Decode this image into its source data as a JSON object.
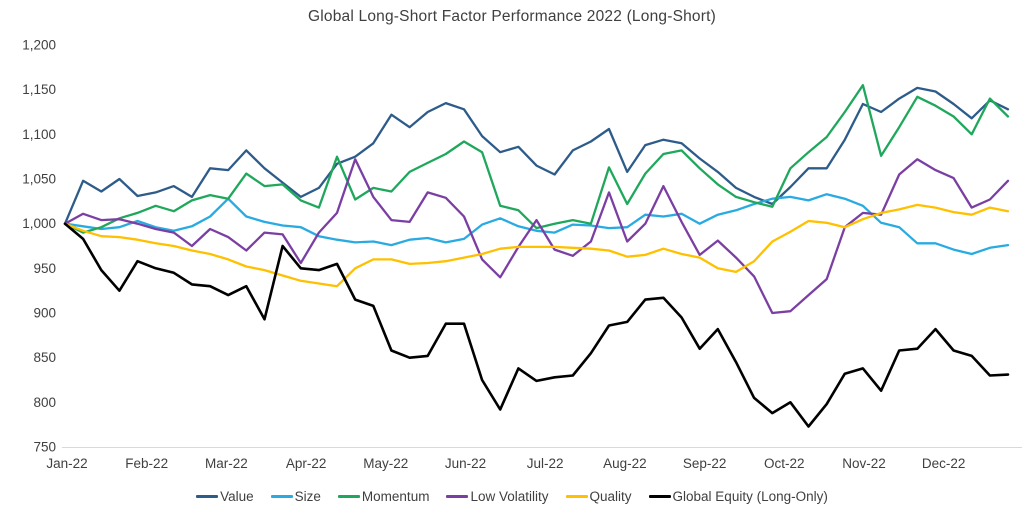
{
  "chart_data": {
    "type": "line",
    "title": "Global Long-Short Factor Performance 2022 (Long-Short)",
    "xlabel": "",
    "ylabel": "",
    "ylim": [
      750,
      1200
    ],
    "y_tick_step": 50,
    "y_tick_labels": [
      "750",
      "800",
      "850",
      "900",
      "950",
      "1,000",
      "1,050",
      "1,100",
      "1,150",
      "1,200"
    ],
    "categories": [
      "Jan-22",
      "Feb-22",
      "Mar-22",
      "Apr-22",
      "May-22",
      "Jun-22",
      "Jul-22",
      "Aug-22",
      "Sep-22",
      "Oct-22",
      "Nov-22",
      "Dec-22"
    ],
    "x_unit": "weekly samples, w0 = start Jan 2022, w52 = end Dec 2022 (daily series approximated weekly)",
    "grid": false,
    "legend_position": "bottom",
    "baseline_color": "#d9d9d9",
    "series": [
      {
        "name": "Value",
        "color": "#2e5c8a",
        "values": [
          1000,
          1048,
          1036,
          1050,
          1031,
          1035,
          1042,
          1030,
          1062,
          1060,
          1082,
          1062,
          1046,
          1030,
          1040,
          1067,
          1075,
          1090,
          1122,
          1108,
          1125,
          1135,
          1128,
          1098,
          1080,
          1086,
          1065,
          1055,
          1082,
          1092,
          1106,
          1058,
          1088,
          1094,
          1090,
          1073,
          1058,
          1040,
          1030,
          1022,
          1041,
          1062,
          1062,
          1094,
          1134,
          1125,
          1140,
          1152,
          1148,
          1134,
          1118,
          1138,
          1128
        ]
      },
      {
        "name": "Size",
        "color": "#29abe2",
        "values": [
          1000,
          997,
          994,
          996,
          1003,
          996,
          992,
          997,
          1008,
          1028,
          1008,
          1002,
          998,
          996,
          986,
          982,
          979,
          980,
          976,
          982,
          984,
          979,
          983,
          999,
          1006,
          997,
          992,
          990,
          999,
          998,
          995,
          996,
          1010,
          1008,
          1011,
          1000,
          1010,
          1015,
          1022,
          1028,
          1030,
          1026,
          1033,
          1028,
          1020,
          1001,
          996,
          978,
          978,
          971,
          966,
          973,
          976
        ]
      },
      {
        "name": "Momentum",
        "color": "#1fa85c",
        "values": [
          1000,
          990,
          996,
          1006,
          1012,
          1020,
          1014,
          1026,
          1032,
          1028,
          1056,
          1042,
          1044,
          1026,
          1018,
          1075,
          1027,
          1040,
          1036,
          1058,
          1068,
          1078,
          1092,
          1080,
          1020,
          1015,
          995,
          1000,
          1004,
          1000,
          1063,
          1022,
          1056,
          1078,
          1082,
          1062,
          1044,
          1030,
          1024,
          1019,
          1062,
          1080,
          1097,
          1125,
          1155,
          1076,
          1108,
          1142,
          1132,
          1120,
          1100,
          1140,
          1120
        ]
      },
      {
        "name": "Low Volatility",
        "color": "#7b3fa3",
        "values": [
          1000,
          1011,
          1004,
          1005,
          1000,
          994,
          990,
          975,
          994,
          985,
          970,
          990,
          988,
          956,
          990,
          1012,
          1072,
          1030,
          1004,
          1002,
          1035,
          1029,
          1008,
          960,
          940,
          974,
          1004,
          971,
          964,
          980,
          1035,
          980,
          1000,
          1042,
          1002,
          965,
          981,
          962,
          941,
          900,
          902,
          920,
          938,
          996,
          1012,
          1010,
          1055,
          1072,
          1060,
          1051,
          1018,
          1027,
          1048
        ]
      },
      {
        "name": "Quality",
        "color": "#ffc000",
        "values": [
          1000,
          992,
          986,
          985,
          982,
          978,
          975,
          970,
          966,
          960,
          952,
          948,
          942,
          936,
          933,
          930,
          950,
          960,
          960,
          955,
          956,
          958,
          962,
          966,
          972,
          974,
          974,
          974,
          973,
          972,
          970,
          963,
          965,
          972,
          966,
          962,
          950,
          946,
          958,
          980,
          991,
          1003,
          1001,
          996,
          1005,
          1012,
          1016,
          1021,
          1018,
          1013,
          1010,
          1018,
          1014
        ]
      },
      {
        "name": "Global Equity (Long-Only)",
        "color": "#000000",
        "values": [
          1000,
          983,
          948,
          925,
          958,
          950,
          945,
          932,
          930,
          920,
          930,
          893,
          975,
          950,
          948,
          955,
          915,
          908,
          858,
          850,
          852,
          888,
          888,
          825,
          792,
          838,
          824,
          828,
          830,
          855,
          886,
          890,
          915,
          917,
          895,
          860,
          882,
          845,
          805,
          788,
          800,
          773,
          798,
          832,
          838,
          813,
          858,
          860,
          882,
          858,
          852,
          830,
          831
        ]
      }
    ]
  }
}
